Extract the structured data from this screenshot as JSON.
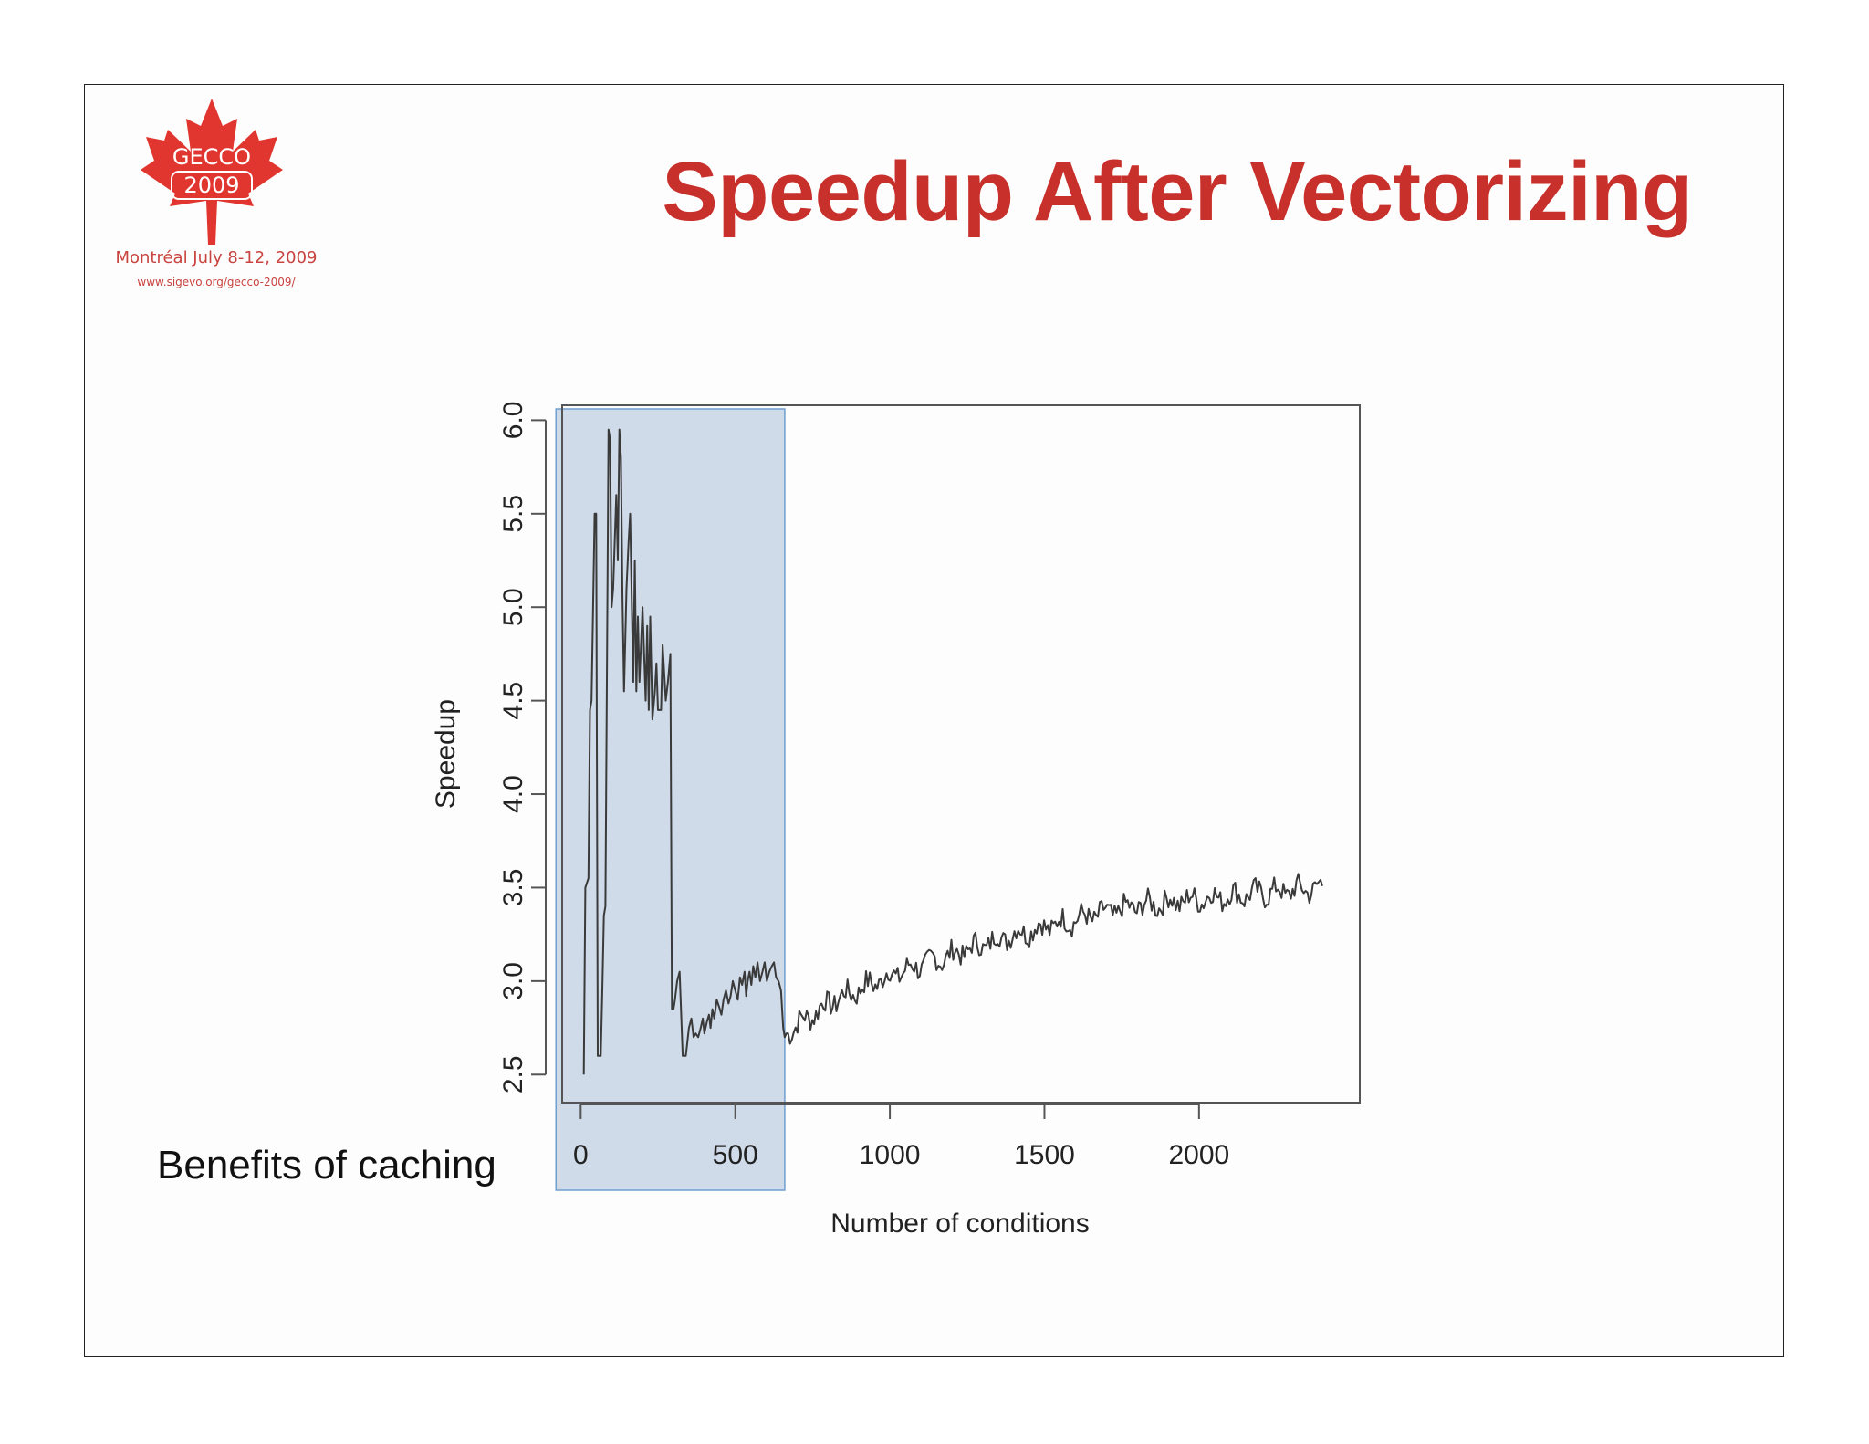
{
  "slide": {
    "title": "Speedup After Vectorizing",
    "caption": "Benefits of caching"
  },
  "logo": {
    "name": "GECCO",
    "year": "2009",
    "city_line": "Montréal July 8-12, 2009",
    "url": "www.sigevo.org/gecco-2009/",
    "color": "#e0362f"
  },
  "colors": {
    "title": "#c8302c",
    "highlight_fill": "#bccde0",
    "highlight_stroke": "#6f9fcf",
    "line": "#3a3a3a"
  },
  "chart_data": {
    "type": "line",
    "xlabel": "Number of conditions",
    "ylabel": "Speedup",
    "xlim": [
      -60,
      2520
    ],
    "ylim": [
      2.35,
      6.08
    ],
    "xticks": [
      0,
      500,
      1000,
      1500,
      2000
    ],
    "yticks": [
      2.5,
      3.0,
      3.5,
      4.0,
      4.5,
      5.0,
      5.5,
      6.0
    ],
    "xtick_labels": [
      "0",
      "500",
      "1000",
      "1500",
      "2000"
    ],
    "ytick_labels": [
      "2.5",
      "3.0",
      "3.5",
      "4.0",
      "4.5",
      "5.0",
      "5.5",
      "6.0"
    ],
    "grid": false,
    "highlight": {
      "label": "Benefits of caching",
      "x_range": [
        -80,
        660
      ]
    },
    "series": [
      {
        "x": [
          10,
          15,
          25,
          30,
          35,
          45,
          50,
          55,
          65,
          70,
          75,
          80,
          90,
          95,
          100,
          105,
          115,
          120,
          125,
          130,
          135,
          140,
          148,
          155,
          160,
          170,
          175,
          180,
          185,
          190,
          200,
          210,
          215,
          220,
          225,
          232,
          240,
          245,
          250,
          260,
          265,
          270,
          275,
          282,
          290,
          295,
          300,
          305,
          312,
          320,
          330,
          340,
          350,
          358,
          365,
          372,
          380,
          388,
          395,
          400,
          408,
          415,
          420,
          426,
          432,
          440,
          448,
          455,
          462,
          470,
          478,
          485,
          492,
          500,
          508,
          515,
          522,
          530,
          535,
          540,
          546,
          552,
          558,
          565,
          572,
          580,
          588,
          595,
          602,
          610,
          618,
          625,
          632,
          640,
          648,
          655,
          660
        ],
        "y": [
          2.5,
          3.5,
          3.55,
          4.45,
          4.5,
          5.5,
          5.5,
          2.6,
          2.6,
          2.95,
          3.35,
          3.4,
          5.95,
          5.9,
          5.0,
          5.1,
          5.6,
          5.25,
          5.95,
          5.8,
          5.05,
          4.55,
          5.1,
          5.35,
          5.5,
          4.6,
          5.25,
          4.55,
          4.95,
          4.6,
          5.0,
          4.5,
          4.9,
          4.45,
          4.95,
          4.4,
          4.55,
          4.7,
          4.45,
          4.45,
          4.8,
          4.65,
          4.5,
          4.6,
          4.75,
          2.85,
          2.85,
          2.9,
          3.0,
          3.05,
          2.6,
          2.6,
          2.75,
          2.8,
          2.7,
          2.72,
          2.7,
          2.75,
          2.8,
          2.72,
          2.78,
          2.82,
          2.75,
          2.85,
          2.8,
          2.9,
          2.86,
          2.82,
          2.9,
          2.95,
          2.88,
          2.92,
          3.0,
          2.95,
          2.9,
          3.02,
          2.98,
          3.05,
          2.92,
          3.0,
          3.05,
          2.98,
          3.08,
          3.02,
          3.1,
          3.0,
          3.05,
          3.1,
          3.0,
          3.05,
          3.08,
          3.1,
          3.02,
          3.0,
          2.95,
          2.75,
          2.7
        ]
      }
    ],
    "trend": [
      {
        "x": 660,
        "y": 2.72
      },
      {
        "x": 800,
        "y": 2.88
      },
      {
        "x": 1000,
        "y": 3.03
      },
      {
        "x": 1200,
        "y": 3.14
      },
      {
        "x": 1400,
        "y": 3.25
      },
      {
        "x": 1600,
        "y": 3.33
      },
      {
        "x": 1800,
        "y": 3.4
      },
      {
        "x": 2000,
        "y": 3.44
      },
      {
        "x": 2200,
        "y": 3.47
      },
      {
        "x": 2400,
        "y": 3.5
      }
    ]
  }
}
